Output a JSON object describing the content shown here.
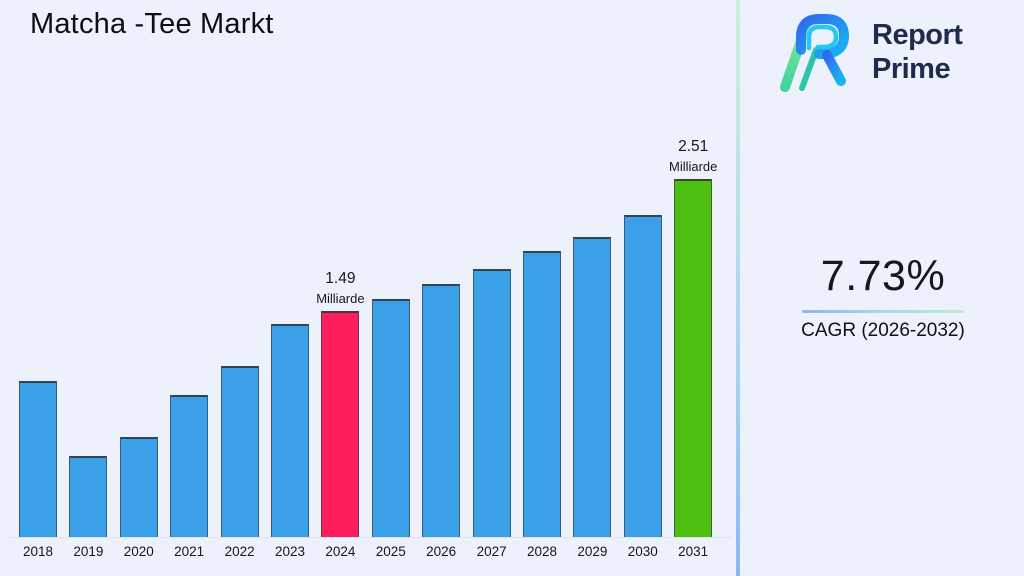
{
  "header": {
    "title": "Matcha -Tee Markt"
  },
  "logo": {
    "line1": "Report",
    "line2": "Prime"
  },
  "stat": {
    "value": "7.73%",
    "label": "CAGR (2026-2032)"
  },
  "colors": {
    "background": "#ECF1FB",
    "bar_default": "#3AA0E8",
    "bar_highlight_pink": "#FB1E5C",
    "bar_highlight_green": "#4CBE0F",
    "logo_navy": "#1E2A4E",
    "divider_top": "#C9F0DC",
    "divider_bottom": "#8FB6F4"
  },
  "chart_data": {
    "type": "bar",
    "title": "Matcha -Tee Markt",
    "categories": [
      "2018",
      "2019",
      "2020",
      "2021",
      "2022",
      "2023",
      "2024",
      "2025",
      "2026",
      "2027",
      "2028",
      "2029",
      "2030",
      "2031"
    ],
    "values": [
      0.95,
      0.37,
      0.51,
      0.84,
      1.06,
      1.39,
      1.49,
      1.58,
      1.7,
      1.81,
      1.95,
      2.06,
      2.23,
      2.51
    ],
    "unit": "Milliarde",
    "ylabel": "",
    "xlabel": "",
    "ylim": [
      -0.26,
      2.99
    ],
    "grid": false,
    "legend": false,
    "annotations": [
      {
        "category": "2024",
        "value_text": "1.49",
        "unit_text": "Milliarde"
      },
      {
        "category": "2031",
        "value_text": "2.51",
        "unit_text": "Milliarde"
      }
    ],
    "bar_colors": {
      "default": "#3AA0E8",
      "2024": "#FB1E5C",
      "2031": "#4CBE0F"
    }
  }
}
